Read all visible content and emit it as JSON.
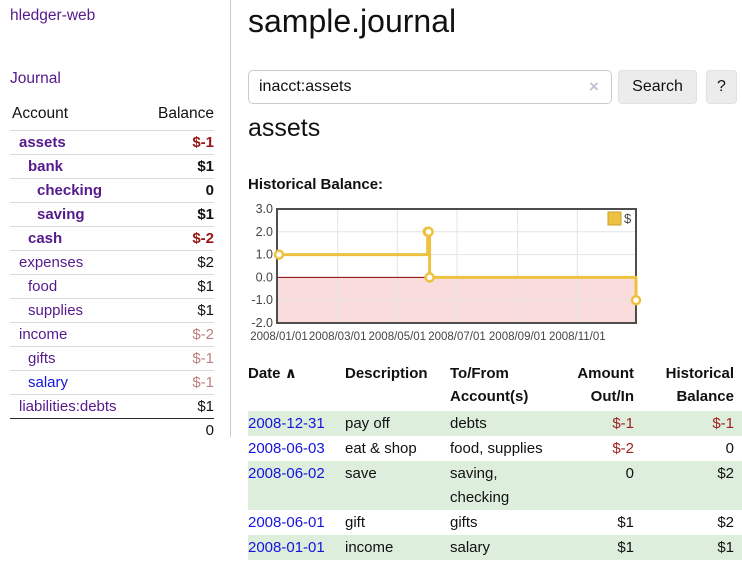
{
  "sidebar": {
    "brand": "hledger-web",
    "journal_link": "Journal",
    "accounts_header": {
      "account": "Account",
      "balance": "Balance"
    },
    "accounts": [
      {
        "name": "assets",
        "indent": 1,
        "bold": true,
        "balance": "$-1",
        "tone": "neg-strong",
        "unvisited": false
      },
      {
        "name": "bank",
        "indent": 2,
        "bold": true,
        "balance": "$1",
        "tone": null,
        "unvisited": false
      },
      {
        "name": "checking",
        "indent": 3,
        "bold": true,
        "balance": "0",
        "tone": null,
        "unvisited": false
      },
      {
        "name": "saving",
        "indent": 3,
        "bold": true,
        "balance": "$1",
        "tone": null,
        "unvisited": false
      },
      {
        "name": "cash",
        "indent": 2,
        "bold": true,
        "balance": "$-2",
        "tone": "neg-strong",
        "unvisited": false
      },
      {
        "name": "expenses",
        "indent": 1,
        "bold": false,
        "balance": "$2",
        "tone": null,
        "unvisited": false
      },
      {
        "name": "food",
        "indent": 2,
        "bold": false,
        "balance": "$1",
        "tone": null,
        "unvisited": false
      },
      {
        "name": "supplies",
        "indent": 2,
        "bold": false,
        "balance": "$1",
        "tone": null,
        "unvisited": false
      },
      {
        "name": "income",
        "indent": 1,
        "bold": false,
        "balance": "$-2",
        "tone": "neg-soft",
        "unvisited": false
      },
      {
        "name": "gifts",
        "indent": 2,
        "bold": false,
        "balance": "$-1",
        "tone": "neg-soft",
        "unvisited": false
      },
      {
        "name": "salary",
        "indent": 2,
        "bold": false,
        "balance": "$-1",
        "tone": "neg-soft",
        "unvisited": true
      },
      {
        "name": "liabilities:debts",
        "indent": 1,
        "bold": false,
        "balance": "$1",
        "tone": null,
        "unvisited": false
      }
    ],
    "total": "0"
  },
  "main": {
    "title": "sample.journal",
    "search": {
      "value": "inacct:assets",
      "clear_icon": "×",
      "button_label": "Search",
      "help_label": "?"
    },
    "account_heading": "assets",
    "chart_label": "Historical Balance:"
  },
  "chart_data": {
    "type": "line",
    "step": true,
    "title": "Historical Balance:",
    "series": [
      {
        "name": "$",
        "color": "#edc240",
        "points": [
          [
            "2008-01-01",
            1
          ],
          [
            "2008-06-01",
            2
          ],
          [
            "2008-06-02",
            2
          ],
          [
            "2008-06-03",
            0
          ],
          [
            "2008-12-31",
            -1
          ]
        ]
      }
    ],
    "xlim": [
      "2008-01-01",
      "2008-12-31"
    ],
    "ylim": [
      -2,
      3
    ],
    "yticks": [
      "3.0",
      "2.0",
      "1.0",
      "0.0",
      "-1.0",
      "-2.0"
    ],
    "ytick_values": [
      3,
      2,
      1,
      0,
      -1,
      -2
    ],
    "xticks": [
      "2008/01/01",
      "2008/03/01",
      "2008/05/01",
      "2008/07/01",
      "2008/09/01",
      "2008/11/01"
    ],
    "xtick_dates": [
      "2008-01-01",
      "2008-03-01",
      "2008-05-01",
      "2008-07-01",
      "2008-09-01",
      "2008-11-01"
    ],
    "legend": {
      "label": "$",
      "position": "top-right"
    },
    "grid": true,
    "colors": {
      "line": "#edc240",
      "marker_fill": "#ffffff",
      "negative_region": "#fbdcdc",
      "zero_line": "#8b0000",
      "gridline": "#e4e4e4",
      "plot_border": "#4d4d4d",
      "legend_swatch_border": "#c9a32b"
    }
  },
  "transactions": {
    "headers": [
      "Date",
      "Description",
      "To/From Account(s)",
      "Amount Out/In",
      "Historical Balance"
    ],
    "sort_indicator": "∧",
    "rows": [
      {
        "date": "2008-12-31",
        "description": "pay off",
        "accounts": "debts",
        "amount": "$-1",
        "amount_negative": true,
        "balance": "$-1",
        "balance_negative": true
      },
      {
        "date": "2008-06-03",
        "description": "eat & shop",
        "accounts": "food, supplies",
        "amount": "$-2",
        "amount_negative": true,
        "balance": "0",
        "balance_negative": false
      },
      {
        "date": "2008-06-02",
        "description": "save",
        "accounts": "saving, checking",
        "amount": "0",
        "amount_negative": false,
        "balance": "$2",
        "balance_negative": false
      },
      {
        "date": "2008-06-01",
        "description": "gift",
        "accounts": "gifts",
        "amount": "$1",
        "amount_negative": false,
        "balance": "$2",
        "balance_negative": false
      },
      {
        "date": "2008-01-01",
        "description": "income",
        "accounts": "salary",
        "amount": "$1",
        "amount_negative": false,
        "balance": "$1",
        "balance_negative": false
      }
    ]
  }
}
